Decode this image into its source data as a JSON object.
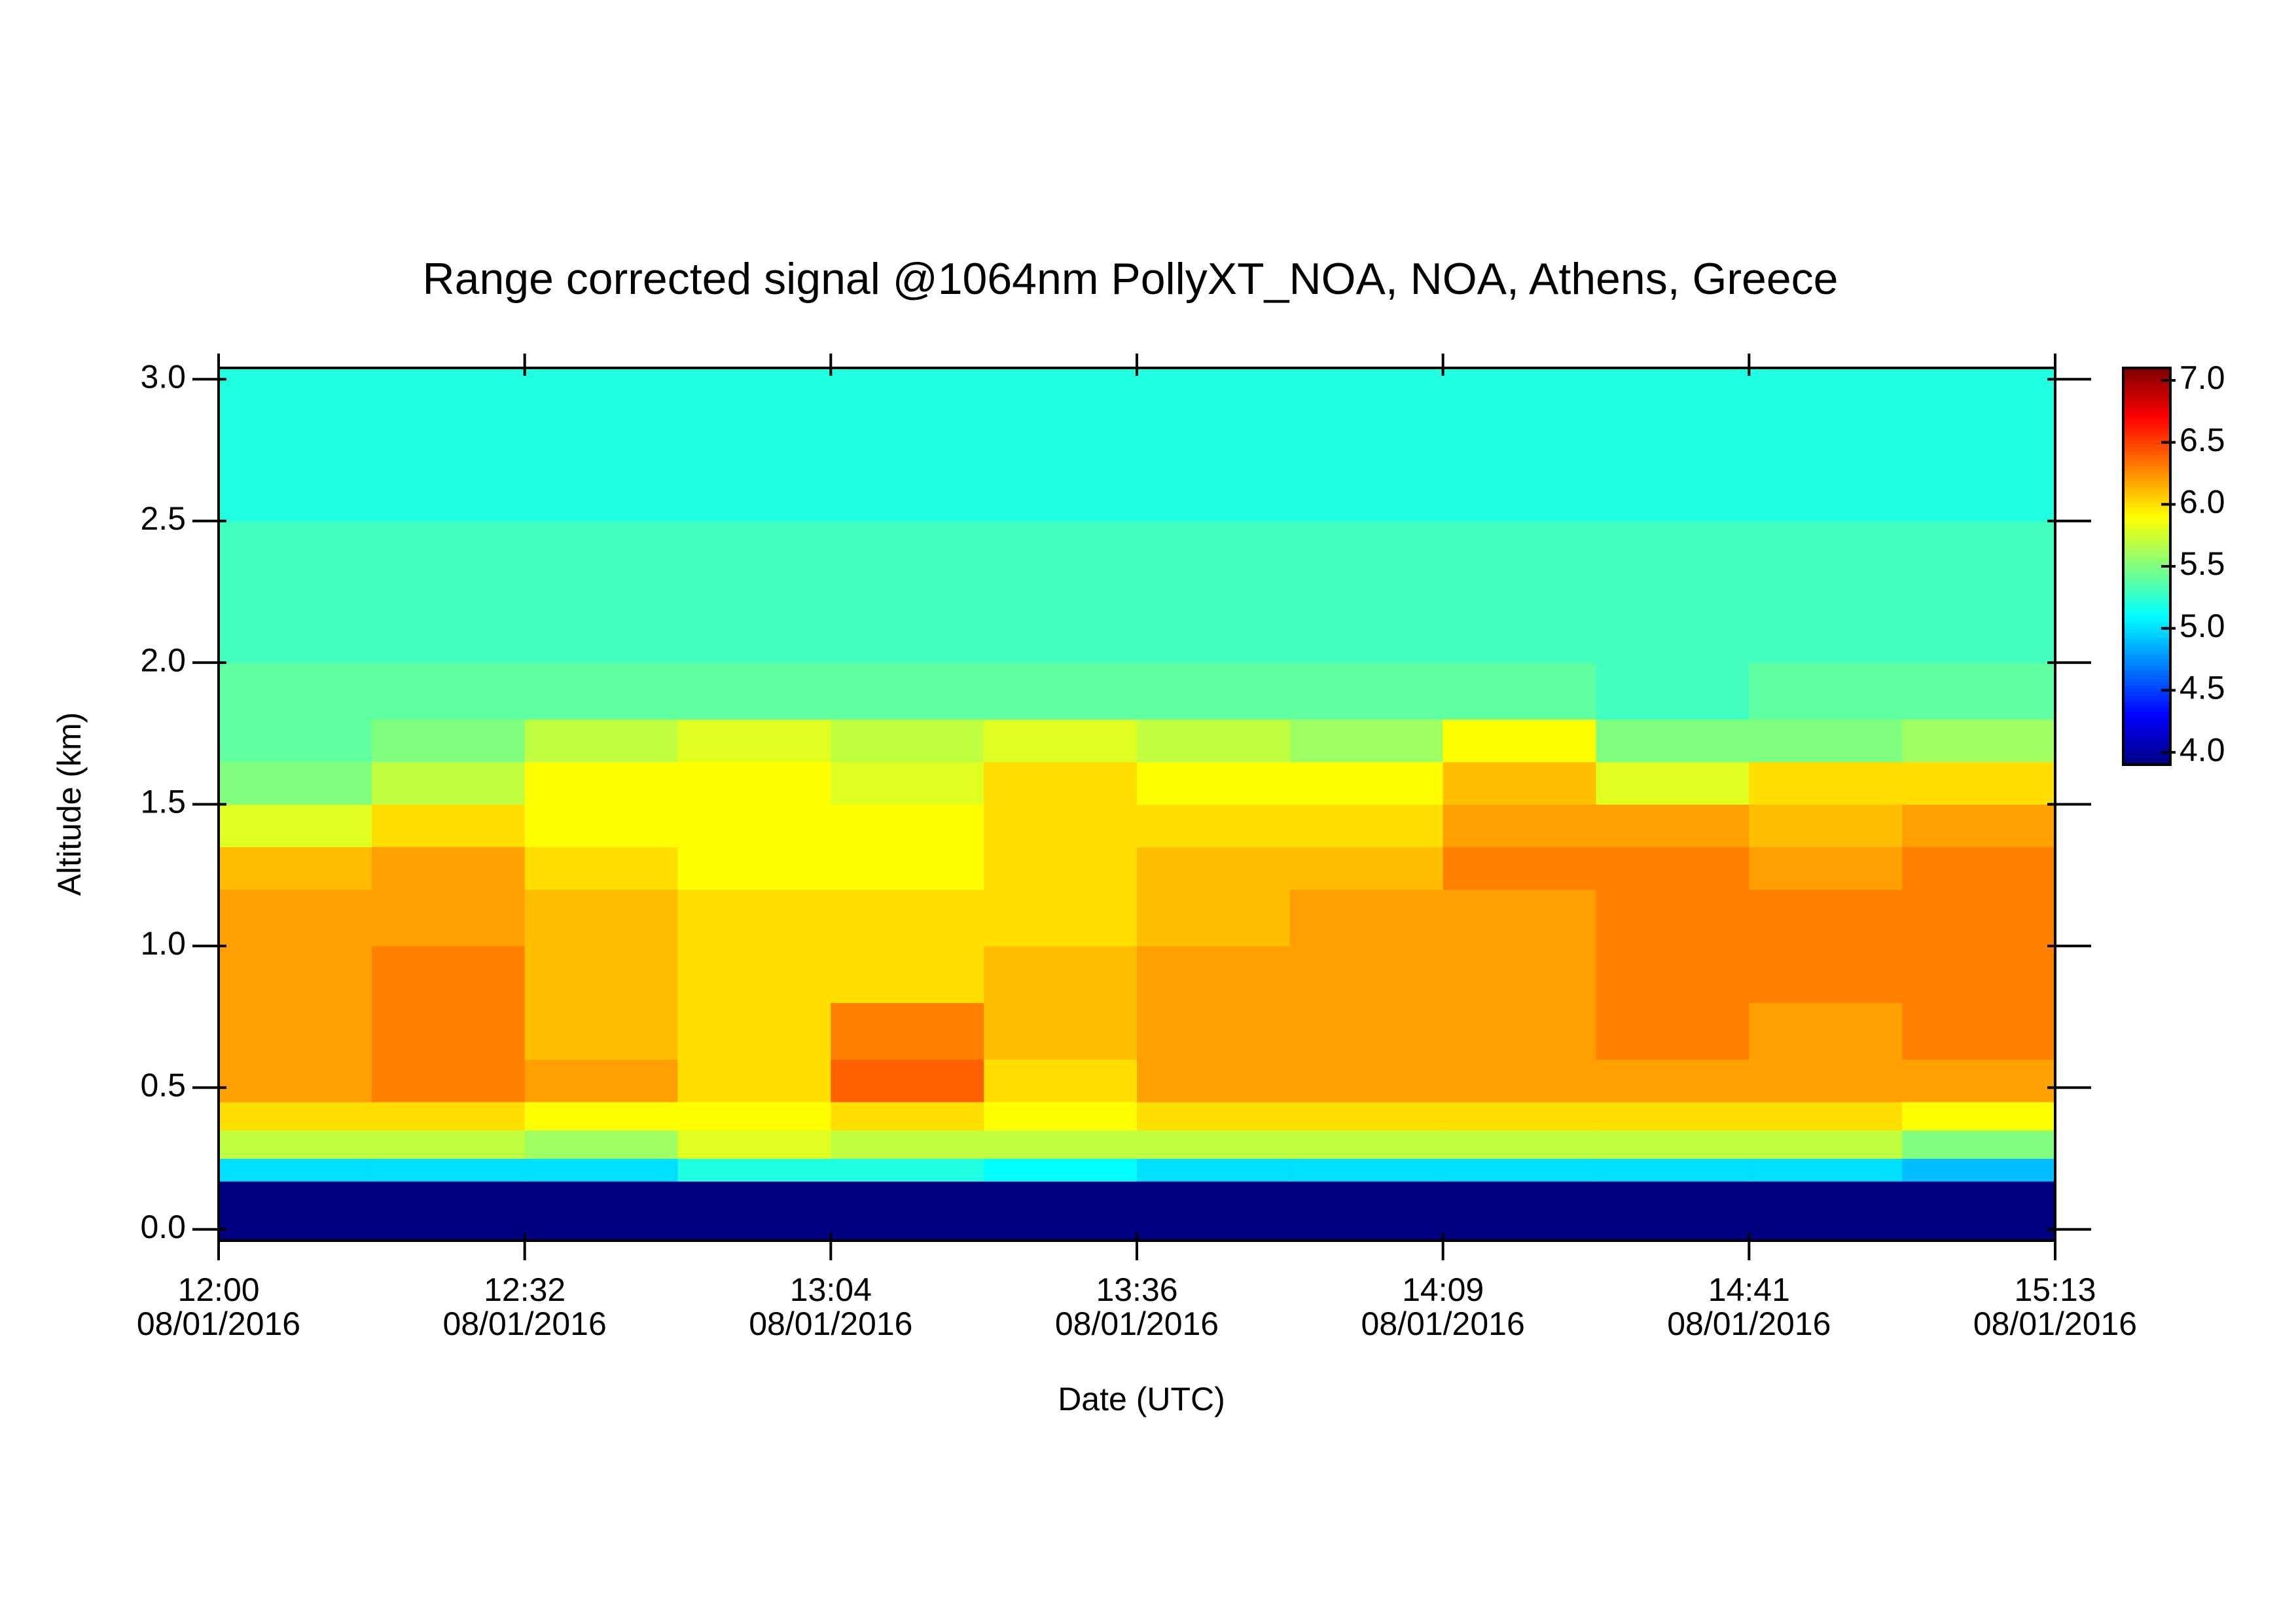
{
  "chart_data": {
    "type": "heatmap",
    "title": "Range corrected signal @1064nm  PollyXT_NOA, NOA, Athens, Greece",
    "x_label": "Date (UTC)",
    "y_label": "Altitude (km)",
    "colormap": "jet",
    "xticks": [
      {
        "time": "12:00",
        "date": "08/01/2016"
      },
      {
        "time": "12:32",
        "date": "08/01/2016"
      },
      {
        "time": "13:04",
        "date": "08/01/2016"
      },
      {
        "time": "13:36",
        "date": "08/01/2016"
      },
      {
        "time": "14:09",
        "date": "08/01/2016"
      },
      {
        "time": "14:41",
        "date": "08/01/2016"
      },
      {
        "time": "15:13",
        "date": "08/01/2016"
      }
    ],
    "ylim": [
      -0.04,
      3.04
    ],
    "yticks": [
      {
        "value": 0,
        "label": "0.0"
      },
      {
        "value": 0.5,
        "label": "0.5"
      },
      {
        "value": 1,
        "label": "1.0"
      },
      {
        "value": 1.5,
        "label": "1.5"
      },
      {
        "value": 2,
        "label": "2.0"
      },
      {
        "value": 2.5,
        "label": "2.5"
      },
      {
        "value": 3,
        "label": "3.0"
      }
    ],
    "ybins": [
      -0.04,
      0.17,
      0.25,
      0.35,
      0.45,
      0.6,
      0.8,
      1.0,
      1.2,
      1.35,
      1.5,
      1.65,
      1.8,
      2.0,
      2.5,
      3.04
    ],
    "clim": [
      3.9,
      7.1
    ],
    "cticks": [
      {
        "value": 4,
        "label": "4.0"
      },
      {
        "value": 4.5,
        "label": "4.5"
      },
      {
        "value": 5,
        "label": "5.0"
      },
      {
        "value": 5.5,
        "label": "5.5"
      },
      {
        "value": 6,
        "label": "6.0"
      },
      {
        "value": 6.5,
        "label": "6.5"
      },
      {
        "value": 7,
        "label": "7.0"
      }
    ],
    "values": [
      [
        3.9,
        3.9,
        3.9,
        3.9,
        3.9,
        3.9,
        3.9,
        3.9,
        3.9,
        3.9,
        3.9,
        3.9
      ],
      [
        5.0,
        5.0,
        5.0,
        5.2,
        5.2,
        5.1,
        5.0,
        5.0,
        5.0,
        5.0,
        5.0,
        4.9
      ],
      [
        5.7,
        5.7,
        5.6,
        5.8,
        5.7,
        5.7,
        5.7,
        5.7,
        5.7,
        5.7,
        5.7,
        5.5
      ],
      [
        6.0,
        6.0,
        5.9,
        5.9,
        6.0,
        5.9,
        6.0,
        6.0,
        6.0,
        6.0,
        6.0,
        5.9
      ],
      [
        6.2,
        6.3,
        6.2,
        6.0,
        6.4,
        6.0,
        6.2,
        6.2,
        6.2,
        6.2,
        6.2,
        6.2
      ],
      [
        6.2,
        6.3,
        6.1,
        6.0,
        6.3,
        6.1,
        6.2,
        6.2,
        6.2,
        6.3,
        6.2,
        6.3
      ],
      [
        6.2,
        6.3,
        6.1,
        6.0,
        6.0,
        6.1,
        6.2,
        6.2,
        6.2,
        6.3,
        6.3,
        6.3
      ],
      [
        6.2,
        6.2,
        6.1,
        6.0,
        6.0,
        6.0,
        6.1,
        6.2,
        6.2,
        6.3,
        6.3,
        6.3
      ],
      [
        6.1,
        6.2,
        6.0,
        5.9,
        5.9,
        6.0,
        6.1,
        6.1,
        6.3,
        6.3,
        6.2,
        6.3
      ],
      [
        5.8,
        6.0,
        5.9,
        5.9,
        5.9,
        6.0,
        6.0,
        6.0,
        6.2,
        6.2,
        6.1,
        6.2
      ],
      [
        5.5,
        5.7,
        5.9,
        5.9,
        5.8,
        6.0,
        5.9,
        5.9,
        6.1,
        5.8,
        6.0,
        6.0
      ],
      [
        5.4,
        5.5,
        5.7,
        5.8,
        5.7,
        5.8,
        5.7,
        5.6,
        5.9,
        5.5,
        5.5,
        5.6
      ],
      [
        5.4,
        5.4,
        5.4,
        5.4,
        5.4,
        5.4,
        5.4,
        5.4,
        5.4,
        5.3,
        5.4,
        5.4
      ],
      [
        5.3,
        5.3,
        5.3,
        5.3,
        5.3,
        5.3,
        5.3,
        5.3,
        5.3,
        5.3,
        5.3,
        5.3
      ],
      [
        5.2,
        5.2,
        5.2,
        5.2,
        5.2,
        5.2,
        5.2,
        5.2,
        5.2,
        5.2,
        5.2,
        5.2
      ]
    ]
  }
}
